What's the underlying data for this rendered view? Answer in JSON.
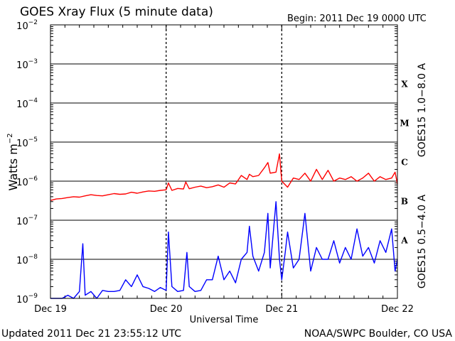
{
  "chart_data": {
    "type": "line",
    "title": "GOES Xray Flux (5 minute data)",
    "begin": "Begin:  2011 Dec 19 0000 UTC",
    "xlabel": "Universal Time",
    "ylabel_text": "Watts m",
    "ylabel_exponent": "−2",
    "yscale": "log",
    "ylim": [
      1e-09,
      0.01
    ],
    "y_ticks": [
      {
        "base": "10",
        "exp": "−9",
        "value": 1e-09
      },
      {
        "base": "10",
        "exp": "−8",
        "value": 1e-08
      },
      {
        "base": "10",
        "exp": "−7",
        "value": 1e-07
      },
      {
        "base": "10",
        "exp": "−6",
        "value": 1e-06
      },
      {
        "base": "10",
        "exp": "−5",
        "value": 1e-05
      },
      {
        "base": "10",
        "exp": "−4",
        "value": 0.0001
      },
      {
        "base": "10",
        "exp": "−3",
        "value": 0.001
      },
      {
        "base": "10",
        "exp": "−2",
        "value": 0.01
      }
    ],
    "xlim_days": [
      0,
      3
    ],
    "x_ticks": [
      {
        "label": "Dec 19",
        "day": 0
      },
      {
        "label": "Dec 20",
        "day": 1
      },
      {
        "label": "Dec 21",
        "day": 2
      },
      {
        "label": "Dec 22",
        "day": 3
      }
    ],
    "flare_classes": [
      {
        "label": "X",
        "value": 0.0001
      },
      {
        "label": "M",
        "value": 1e-05
      },
      {
        "label": "C",
        "value": 1e-06
      },
      {
        "label": "B",
        "value": 1e-07
      },
      {
        "label": "A",
        "value": 1e-08
      }
    ],
    "grid": true,
    "series": [
      {
        "name": "GOES15 1.0−8.0 A",
        "color": "#ff0000",
        "x_days": [
          0,
          0.05,
          0.1,
          0.15,
          0.2,
          0.25,
          0.3,
          0.35,
          0.4,
          0.45,
          0.5,
          0.55,
          0.6,
          0.65,
          0.7,
          0.75,
          0.8,
          0.85,
          0.9,
          0.95,
          1.0,
          1.02,
          1.05,
          1.1,
          1.15,
          1.17,
          1.2,
          1.25,
          1.3,
          1.35,
          1.4,
          1.45,
          1.5,
          1.55,
          1.6,
          1.65,
          1.7,
          1.72,
          1.75,
          1.8,
          1.85,
          1.88,
          1.9,
          1.95,
          1.98,
          2.0,
          2.05,
          2.1,
          2.15,
          2.2,
          2.25,
          2.3,
          2.35,
          2.4,
          2.45,
          2.5,
          2.55,
          2.6,
          2.65,
          2.7,
          2.75,
          2.8,
          2.85,
          2.9,
          2.95,
          2.98,
          3.0
        ],
        "values": [
          3.2e-07,
          3.5e-07,
          3.6e-07,
          3.8e-07,
          4e-07,
          3.9e-07,
          4.2e-07,
          4.5e-07,
          4.3e-07,
          4.2e-07,
          4.5e-07,
          4.8e-07,
          4.6e-07,
          4.7e-07,
          5.2e-07,
          4.9e-07,
          5.3e-07,
          5.6e-07,
          5.5e-07,
          5.8e-07,
          6e-07,
          9e-07,
          5.8e-07,
          6.5e-07,
          6.3e-07,
          9.5e-07,
          6.4e-07,
          7e-07,
          7.5e-07,
          6.8e-07,
          7.2e-07,
          8e-07,
          7e-07,
          9e-07,
          8.5e-07,
          1.4e-06,
          1.1e-06,
          1.5e-06,
          1.3e-06,
          1.4e-06,
          2.2e-06,
          3e-06,
          1.6e-06,
          1.7e-06,
          5e-06,
          1e-06,
          7e-07,
          1.2e-06,
          1.1e-06,
          1.6e-06,
          1e-06,
          2e-06,
          1.1e-06,
          1.9e-06,
          1e-06,
          1.2e-06,
          1.1e-06,
          1.3e-06,
          1e-06,
          1.2e-06,
          1.6e-06,
          1e-06,
          1.3e-06,
          1.1e-06,
          1.2e-06,
          1.7e-06,
          8.5e-07
        ]
      },
      {
        "name": "GOES15 0.5−4.0 A",
        "color": "#0000ff",
        "x_days": [
          0,
          0.05,
          0.1,
          0.15,
          0.2,
          0.25,
          0.28,
          0.3,
          0.35,
          0.4,
          0.45,
          0.5,
          0.55,
          0.6,
          0.65,
          0.7,
          0.75,
          0.8,
          0.85,
          0.9,
          0.95,
          1.0,
          1.02,
          1.05,
          1.1,
          1.15,
          1.18,
          1.2,
          1.25,
          1.3,
          1.35,
          1.4,
          1.45,
          1.5,
          1.55,
          1.6,
          1.65,
          1.7,
          1.72,
          1.75,
          1.8,
          1.85,
          1.88,
          1.9,
          1.95,
          1.98,
          2.0,
          2.03,
          2.05,
          2.1,
          2.15,
          2.2,
          2.25,
          2.3,
          2.35,
          2.4,
          2.45,
          2.5,
          2.55,
          2.6,
          2.65,
          2.7,
          2.75,
          2.8,
          2.85,
          2.9,
          2.95,
          2.98,
          3.0
        ],
        "values": [
          1e-09,
          1e-09,
          1e-09,
          1.2e-09,
          1e-09,
          1.5e-09,
          2.5e-08,
          1.2e-09,
          1.5e-09,
          1e-09,
          1.6e-09,
          1.5e-09,
          1.5e-09,
          1.6e-09,
          3e-09,
          2e-09,
          4e-09,
          2e-09,
          1.8e-09,
          1.5e-09,
          1.9e-09,
          1.6e-09,
          5e-08,
          2e-09,
          1.5e-09,
          1.6e-09,
          1.5e-08,
          2e-09,
          1.5e-09,
          1.6e-09,
          3e-09,
          3e-09,
          1.2e-08,
          3e-09,
          5e-09,
          2.5e-09,
          1e-08,
          1.5e-08,
          7e-08,
          1.2e-08,
          5e-09,
          1.5e-08,
          1.5e-07,
          6e-09,
          3e-07,
          1e-08,
          3e-09,
          1.5e-08,
          5e-08,
          6e-09,
          1e-08,
          1.5e-07,
          5e-09,
          2e-08,
          1e-08,
          1e-08,
          3e-08,
          8e-09,
          2e-08,
          1e-08,
          6e-08,
          1.2e-08,
          2e-08,
          8e-09,
          3e-08,
          1.5e-08,
          6e-08,
          5e-09,
          1e-08
        ]
      }
    ],
    "footer_left": "Updated 2011 Dec 21 23:55:12 UTC",
    "footer_right": "NOAA/SWPC Boulder, CO USA"
  }
}
